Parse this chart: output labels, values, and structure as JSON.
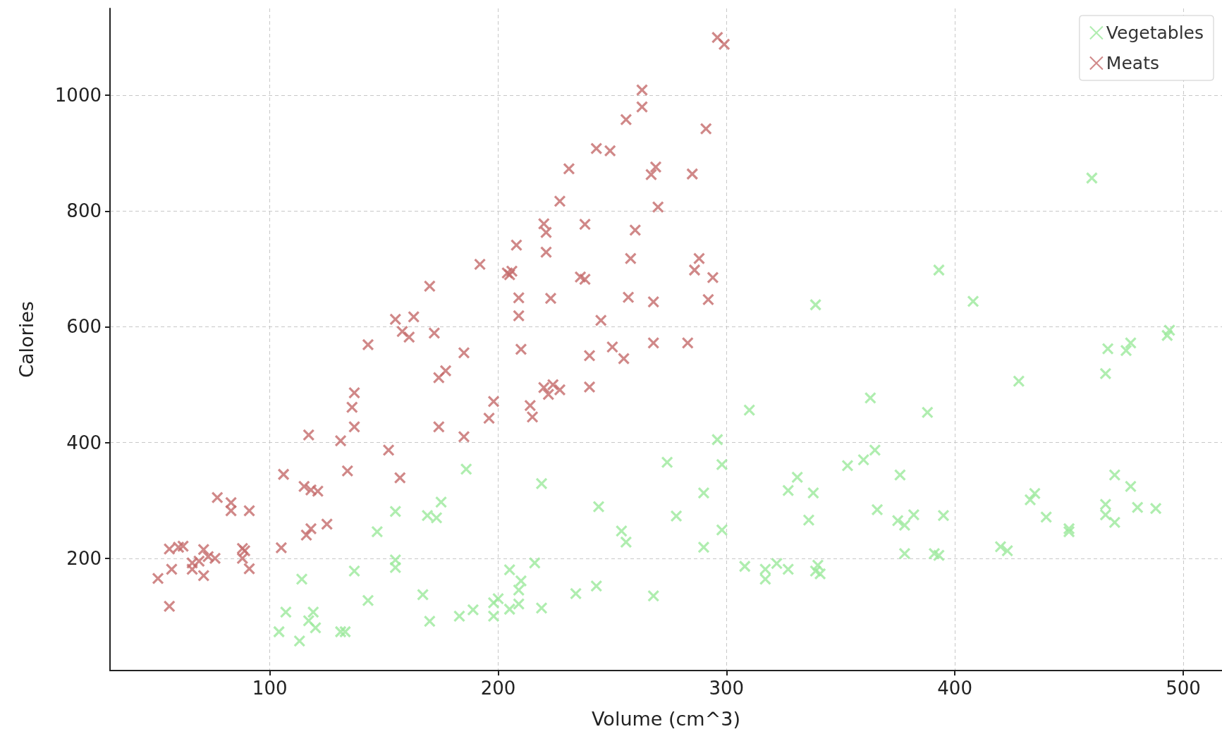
{
  "chart_data": {
    "type": "scatter",
    "xlabel": "Volume (cm^3)",
    "ylabel": "Calories",
    "xlim": [
      30,
      517
    ],
    "ylim": [
      6,
      1150
    ],
    "xticks": [
      100,
      200,
      300,
      400,
      500
    ],
    "yticks": [
      200,
      400,
      600,
      800,
      1000
    ],
    "grid": true,
    "legend": "top right",
    "marker": "cross",
    "series": [
      {
        "name": "Vegetables",
        "color": "#9be89b",
        "x": [
          104,
          107,
          113,
          114,
          117,
          119,
          120,
          131,
          133,
          137,
          143,
          147,
          155,
          155,
          155,
          167,
          169,
          170,
          173,
          175,
          183,
          186,
          189,
          198,
          198,
          200,
          205,
          205,
          209,
          209,
          210,
          216,
          219,
          219,
          234,
          243,
          244,
          254,
          256,
          268,
          274,
          278,
          290,
          290,
          296,
          298,
          298,
          308,
          310,
          317,
          317,
          322,
          327,
          327,
          331,
          336,
          338,
          339,
          339,
          340,
          341,
          353,
          360,
          363,
          365,
          366,
          375,
          376,
          378,
          378,
          382,
          388,
          391,
          393,
          393,
          395,
          408,
          420,
          423,
          428,
          433,
          435,
          440,
          450,
          450,
          460,
          466,
          466,
          466,
          467,
          470,
          470,
          475,
          477,
          477,
          480,
          488,
          493,
          494
        ],
        "values": [
          73,
          107,
          57,
          164,
          92,
          107,
          80,
          73,
          73,
          178,
          127,
          246,
          281,
          197,
          184,
          137,
          274,
          91,
          270,
          297,
          100,
          354,
          111,
          100,
          123,
          130,
          112,
          180,
          121,
          145,
          161,
          192,
          114,
          329,
          139,
          152,
          289,
          247,
          228,
          135,
          366,
          273,
          219,
          313,
          405,
          362,
          249,
          186,
          456,
          181,
          164,
          191,
          317,
          181,
          340,
          266,
          313,
          638,
          178,
          188,
          173,
          360,
          370,
          477,
          387,
          284,
          265,
          344,
          257,
          208,
          275,
          452,
          208,
          698,
          205,
          274,
          644,
          220,
          213,
          506,
          301,
          312,
          271,
          246,
          251,
          857,
          293,
          275,
          519,
          562,
          344,
          262,
          559,
          572,
          324,
          288,
          286,
          585,
          594
        ]
      },
      {
        "name": "Meats",
        "color": "#c46a6a",
        "x": [
          51,
          56,
          57,
          56,
          60,
          62,
          66,
          66,
          69,
          71,
          71,
          73,
          76,
          77,
          83,
          83,
          88,
          89,
          88,
          91,
          91,
          106,
          105,
          116,
          117,
          115,
          118,
          121,
          118,
          125,
          131,
          134,
          136,
          137,
          137,
          143,
          152,
          155,
          157,
          158,
          161,
          163,
          170,
          172,
          174,
          174,
          177,
          185,
          185,
          192,
          196,
          198,
          204,
          205,
          206,
          208,
          209,
          209,
          210,
          214,
          215,
          220,
          221,
          221,
          220,
          222,
          223,
          224,
          227,
          227,
          231,
          236,
          238,
          238,
          240,
          240,
          243,
          245,
          249,
          250,
          255,
          256,
          257,
          258,
          260,
          263,
          263,
          267,
          268,
          268,
          269,
          270,
          283,
          285,
          286,
          288,
          291,
          292,
          294,
          296,
          299
        ],
        "values": [
          165,
          117,
          181,
          216,
          219,
          221,
          192,
          181,
          195,
          215,
          170,
          203,
          200,
          305,
          296,
          282,
          217,
          213,
          200,
          282,
          182,
          345,
          218,
          240,
          413,
          324,
          318,
          316,
          251,
          259,
          403,
          351,
          461,
          486,
          427,
          569,
          387,
          613,
          339,
          592,
          582,
          617,
          670,
          589,
          512,
          427,
          524,
          555,
          410,
          708,
          442,
          471,
          693,
          690,
          696,
          741,
          650,
          619,
          561,
          464,
          444,
          778,
          763,
          729,
          495,
          483,
          649,
          500,
          817,
          491,
          873,
          686,
          777,
          682,
          550,
          496,
          908,
          611,
          904,
          565,
          545,
          958,
          651,
          718,
          767,
          1009,
          980,
          863,
          572,
          643,
          876,
          807,
          572,
          864,
          698,
          718,
          942,
          647,
          685,
          1100,
          1088
        ]
      }
    ]
  }
}
